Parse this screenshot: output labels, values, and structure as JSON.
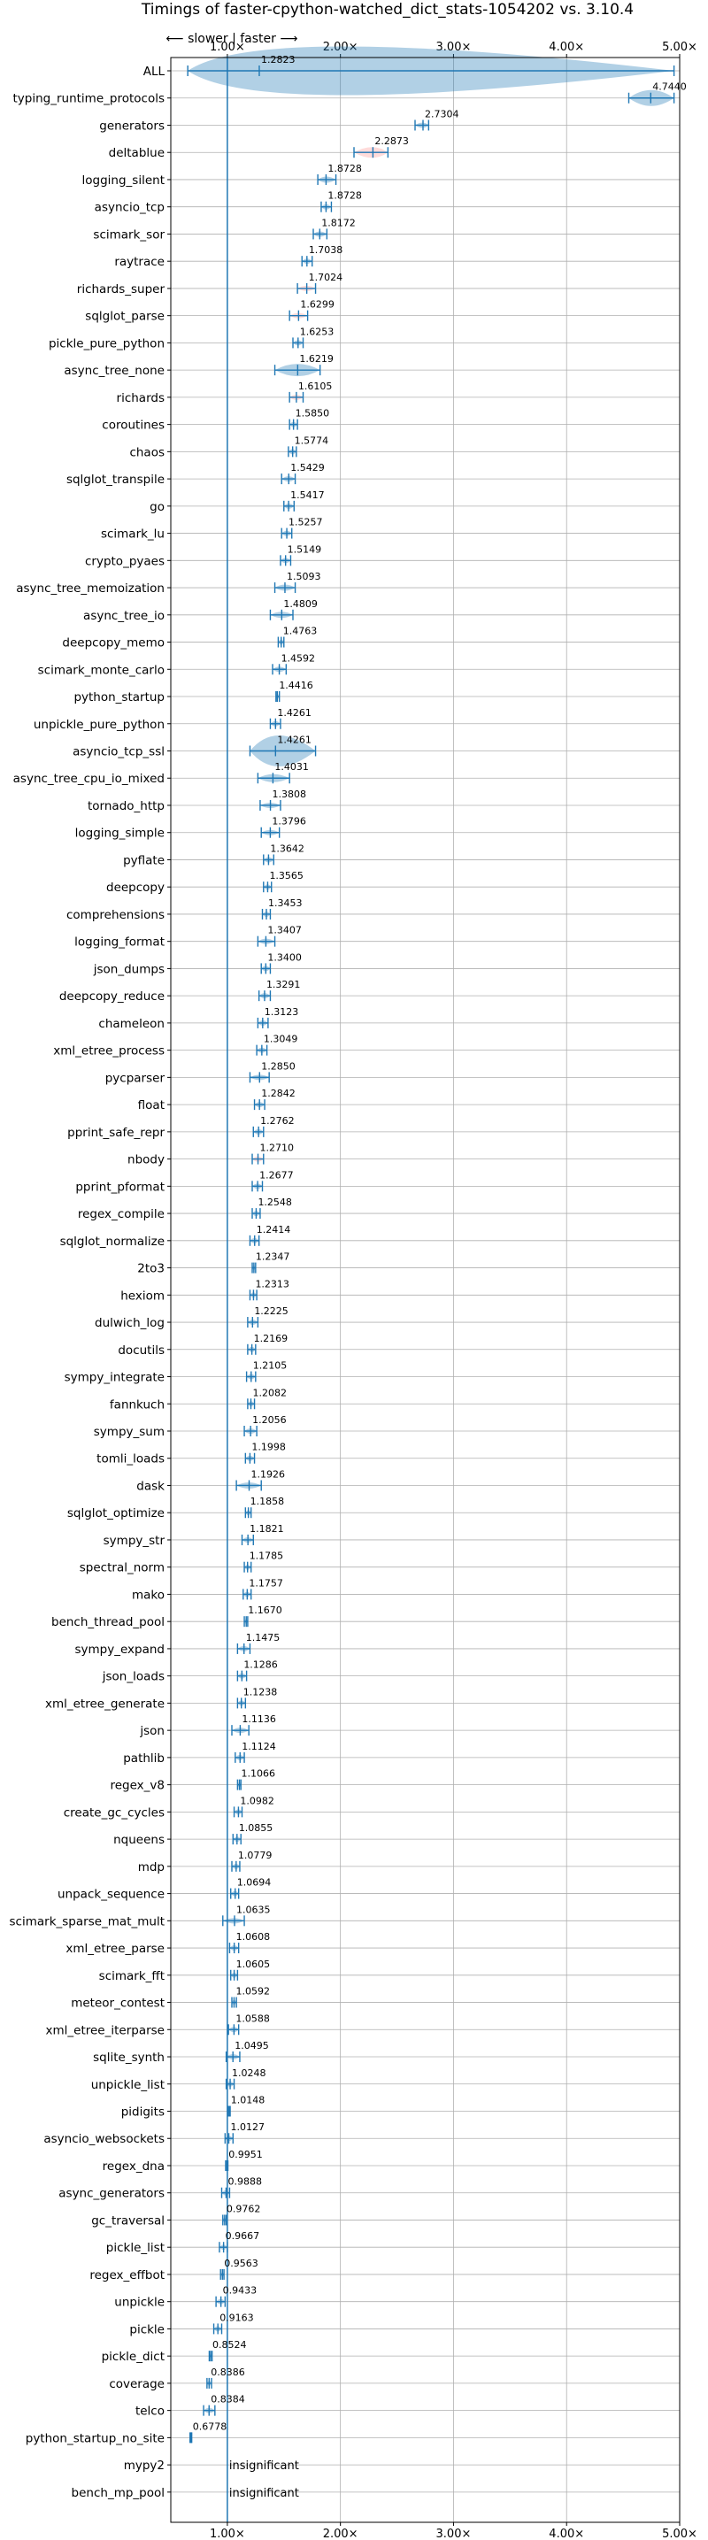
{
  "chart_data": {
    "type": "violin",
    "title": "Timings of faster-cpython-watched_dict_stats-1054202 vs. 3.10.4",
    "direction_note": "⟵ slower  |  faster ⟶",
    "xlim": [
      0.5,
      5.0
    ],
    "xticks": [
      1.0,
      2.0,
      3.0,
      4.0,
      5.0
    ],
    "xtick_labels": [
      "1.00×",
      "2.00×",
      "3.00×",
      "4.00×",
      "5.00×"
    ],
    "insignificant_label": "insignificant",
    "colors": {
      "default": "#1f77b4",
      "highlight": "#ff9896",
      "grid": "#b0b0b0"
    },
    "benchmarks": [
      {
        "name": "ALL",
        "value": 1.2823,
        "lo": 0.65,
        "hi": 4.95,
        "width": 0.55,
        "label": "1.2823"
      },
      {
        "name": "typing_runtime_protocols",
        "value": 4.744,
        "lo": 4.55,
        "hi": 4.95,
        "width": 0.18,
        "label": "4.7440"
      },
      {
        "name": "generators",
        "value": 2.7304,
        "lo": 2.66,
        "hi": 2.78,
        "width": 0.06,
        "label": "2.7304"
      },
      {
        "name": "deltablue",
        "value": 2.2873,
        "lo": 2.12,
        "hi": 2.42,
        "width": 0.12,
        "label": "2.2873",
        "highlight": true
      },
      {
        "name": "logging_silent",
        "value": 1.8728,
        "lo": 1.8,
        "hi": 1.96,
        "width": 0.07,
        "label": "1.8728"
      },
      {
        "name": "asyncio_tcp",
        "value": 1.8728,
        "lo": 1.83,
        "hi": 1.92,
        "width": 0.04,
        "label": "1.8728"
      },
      {
        "name": "scimark_sor",
        "value": 1.8172,
        "lo": 1.76,
        "hi": 1.88,
        "width": 0.05,
        "label": "1.8172"
      },
      {
        "name": "raytrace",
        "value": 1.7038,
        "lo": 1.66,
        "hi": 1.75,
        "width": 0.04,
        "label": "1.7038"
      },
      {
        "name": "richards_super",
        "value": 1.7024,
        "lo": 1.62,
        "hi": 1.78,
        "width": 0.05,
        "label": "1.7024",
        "highlight": true
      },
      {
        "name": "sqlglot_parse",
        "value": 1.6299,
        "lo": 1.55,
        "hi": 1.71,
        "width": 0.05,
        "label": "1.6299",
        "highlight": true
      },
      {
        "name": "pickle_pure_python",
        "value": 1.6253,
        "lo": 1.58,
        "hi": 1.67,
        "width": 0.04,
        "label": "1.6253"
      },
      {
        "name": "async_tree_none",
        "value": 1.6219,
        "lo": 1.42,
        "hi": 1.82,
        "width": 0.14,
        "label": "1.6219"
      },
      {
        "name": "richards",
        "value": 1.6105,
        "lo": 1.55,
        "hi": 1.67,
        "width": 0.04,
        "label": "1.6105",
        "highlight": true
      },
      {
        "name": "coroutines",
        "value": 1.585,
        "lo": 1.55,
        "hi": 1.62,
        "width": 0.04,
        "label": "1.5850"
      },
      {
        "name": "chaos",
        "value": 1.5774,
        "lo": 1.54,
        "hi": 1.61,
        "width": 0.04,
        "label": "1.5774"
      },
      {
        "name": "sqlglot_transpile",
        "value": 1.5429,
        "lo": 1.48,
        "hi": 1.6,
        "width": 0.05,
        "label": "1.5429"
      },
      {
        "name": "go",
        "value": 1.5417,
        "lo": 1.5,
        "hi": 1.59,
        "width": 0.04,
        "label": "1.5417"
      },
      {
        "name": "scimark_lu",
        "value": 1.5257,
        "lo": 1.48,
        "hi": 1.57,
        "width": 0.04,
        "label": "1.5257"
      },
      {
        "name": "crypto_pyaes",
        "value": 1.5149,
        "lo": 1.47,
        "hi": 1.56,
        "width": 0.04,
        "label": "1.5149"
      },
      {
        "name": "async_tree_memoization",
        "value": 1.5093,
        "lo": 1.42,
        "hi": 1.6,
        "width": 0.07,
        "label": "1.5093"
      },
      {
        "name": "async_tree_io",
        "value": 1.4809,
        "lo": 1.38,
        "hi": 1.58,
        "width": 0.07,
        "label": "1.4809"
      },
      {
        "name": "deepcopy_memo",
        "value": 1.4763,
        "lo": 1.45,
        "hi": 1.5,
        "width": 0.03,
        "label": "1.4763"
      },
      {
        "name": "scimark_monte_carlo",
        "value": 1.4592,
        "lo": 1.4,
        "hi": 1.52,
        "width": 0.05,
        "label": "1.4592"
      },
      {
        "name": "python_startup",
        "value": 1.4416,
        "lo": 1.43,
        "hi": 1.46,
        "width": 0.02,
        "label": "1.4416"
      },
      {
        "name": "unpickle_pure_python",
        "value": 1.4261,
        "lo": 1.38,
        "hi": 1.47,
        "width": 0.04,
        "label": "1.4261"
      },
      {
        "name": "asyncio_tcp_ssl",
        "value": 1.4261,
        "lo": 1.2,
        "hi": 1.78,
        "width": 0.35,
        "label": "1.4261"
      },
      {
        "name": "async_tree_cpu_io_mixed",
        "value": 1.4031,
        "lo": 1.27,
        "hi": 1.55,
        "width": 0.09,
        "label": "1.4031"
      },
      {
        "name": "tornado_http",
        "value": 1.3808,
        "lo": 1.29,
        "hi": 1.47,
        "width": 0.06,
        "label": "1.3808"
      },
      {
        "name": "logging_simple",
        "value": 1.3796,
        "lo": 1.3,
        "hi": 1.46,
        "width": 0.05,
        "label": "1.3796"
      },
      {
        "name": "pyflate",
        "value": 1.3642,
        "lo": 1.32,
        "hi": 1.41,
        "width": 0.04,
        "label": "1.3642"
      },
      {
        "name": "deepcopy",
        "value": 1.3565,
        "lo": 1.32,
        "hi": 1.39,
        "width": 0.04,
        "label": "1.3565"
      },
      {
        "name": "comprehensions",
        "value": 1.3453,
        "lo": 1.31,
        "hi": 1.38,
        "width": 0.04,
        "label": "1.3453"
      },
      {
        "name": "logging_format",
        "value": 1.3407,
        "lo": 1.27,
        "hi": 1.42,
        "width": 0.05,
        "label": "1.3407"
      },
      {
        "name": "json_dumps",
        "value": 1.34,
        "lo": 1.3,
        "hi": 1.38,
        "width": 0.04,
        "label": "1.3400"
      },
      {
        "name": "deepcopy_reduce",
        "value": 1.3291,
        "lo": 1.28,
        "hi": 1.38,
        "width": 0.04,
        "label": "1.3291"
      },
      {
        "name": "chameleon",
        "value": 1.3123,
        "lo": 1.27,
        "hi": 1.36,
        "width": 0.04,
        "label": "1.3123"
      },
      {
        "name": "xml_etree_process",
        "value": 1.3049,
        "lo": 1.26,
        "hi": 1.35,
        "width": 0.04,
        "label": "1.3049"
      },
      {
        "name": "pycparser",
        "value": 1.285,
        "lo": 1.2,
        "hi": 1.37,
        "width": 0.05,
        "label": "1.2850"
      },
      {
        "name": "float",
        "value": 1.2842,
        "lo": 1.24,
        "hi": 1.33,
        "width": 0.04,
        "label": "1.2842"
      },
      {
        "name": "pprint_safe_repr",
        "value": 1.2762,
        "lo": 1.23,
        "hi": 1.32,
        "width": 0.04,
        "label": "1.2762"
      },
      {
        "name": "nbody",
        "value": 1.271,
        "lo": 1.22,
        "hi": 1.32,
        "width": 0.04,
        "label": "1.2710",
        "highlight": true
      },
      {
        "name": "pprint_pformat",
        "value": 1.2677,
        "lo": 1.22,
        "hi": 1.31,
        "width": 0.04,
        "label": "1.2677"
      },
      {
        "name": "regex_compile",
        "value": 1.2548,
        "lo": 1.22,
        "hi": 1.29,
        "width": 0.03,
        "label": "1.2548"
      },
      {
        "name": "sqlglot_normalize",
        "value": 1.2414,
        "lo": 1.2,
        "hi": 1.28,
        "width": 0.04,
        "label": "1.2414"
      },
      {
        "name": "2to3",
        "value": 1.2347,
        "lo": 1.22,
        "hi": 1.25,
        "width": 0.02,
        "label": "1.2347"
      },
      {
        "name": "hexiom",
        "value": 1.2313,
        "lo": 1.2,
        "hi": 1.26,
        "width": 0.03,
        "label": "1.2313"
      },
      {
        "name": "dulwich_log",
        "value": 1.2225,
        "lo": 1.18,
        "hi": 1.27,
        "width": 0.04,
        "label": "1.2225"
      },
      {
        "name": "docutils",
        "value": 1.2169,
        "lo": 1.18,
        "hi": 1.25,
        "width": 0.03,
        "label": "1.2169"
      },
      {
        "name": "sympy_integrate",
        "value": 1.2105,
        "lo": 1.17,
        "hi": 1.25,
        "width": 0.03,
        "label": "1.2105"
      },
      {
        "name": "fannkuch",
        "value": 1.2082,
        "lo": 1.18,
        "hi": 1.24,
        "width": 0.03,
        "label": "1.2082"
      },
      {
        "name": "sympy_sum",
        "value": 1.2056,
        "lo": 1.15,
        "hi": 1.26,
        "width": 0.04,
        "label": "1.2056"
      },
      {
        "name": "tomli_loads",
        "value": 1.1998,
        "lo": 1.16,
        "hi": 1.24,
        "width": 0.03,
        "label": "1.1998"
      },
      {
        "name": "dask",
        "value": 1.1926,
        "lo": 1.08,
        "hi": 1.3,
        "width": 0.07,
        "label": "1.1926"
      },
      {
        "name": "sqlglot_optimize",
        "value": 1.1858,
        "lo": 1.16,
        "hi": 1.21,
        "width": 0.03,
        "label": "1.1858"
      },
      {
        "name": "sympy_str",
        "value": 1.1821,
        "lo": 1.13,
        "hi": 1.23,
        "width": 0.04,
        "label": "1.1821"
      },
      {
        "name": "spectral_norm",
        "value": 1.1785,
        "lo": 1.15,
        "hi": 1.21,
        "width": 0.03,
        "label": "1.1785"
      },
      {
        "name": "mako",
        "value": 1.1757,
        "lo": 1.14,
        "hi": 1.21,
        "width": 0.03,
        "label": "1.1757"
      },
      {
        "name": "bench_thread_pool",
        "value": 1.167,
        "lo": 1.15,
        "hi": 1.18,
        "width": 0.02,
        "label": "1.1670"
      },
      {
        "name": "sympy_expand",
        "value": 1.1475,
        "lo": 1.09,
        "hi": 1.2,
        "width": 0.04,
        "label": "1.1475"
      },
      {
        "name": "json_loads",
        "value": 1.1286,
        "lo": 1.09,
        "hi": 1.17,
        "width": 0.03,
        "label": "1.1286"
      },
      {
        "name": "xml_etree_generate",
        "value": 1.1238,
        "lo": 1.09,
        "hi": 1.16,
        "width": 0.03,
        "label": "1.1238"
      },
      {
        "name": "json",
        "value": 1.1136,
        "lo": 1.04,
        "hi": 1.19,
        "width": 0.05,
        "label": "1.1136"
      },
      {
        "name": "pathlib",
        "value": 1.1124,
        "lo": 1.07,
        "hi": 1.15,
        "width": 0.03,
        "label": "1.1124"
      },
      {
        "name": "regex_v8",
        "value": 1.1066,
        "lo": 1.09,
        "hi": 1.12,
        "width": 0.02,
        "label": "1.1066"
      },
      {
        "name": "create_gc_cycles",
        "value": 1.0982,
        "lo": 1.06,
        "hi": 1.13,
        "width": 0.03,
        "label": "1.0982"
      },
      {
        "name": "nqueens",
        "value": 1.0855,
        "lo": 1.05,
        "hi": 1.12,
        "width": 0.03,
        "label": "1.0855"
      },
      {
        "name": "mdp",
        "value": 1.0779,
        "lo": 1.04,
        "hi": 1.11,
        "width": 0.03,
        "label": "1.0779"
      },
      {
        "name": "unpack_sequence",
        "value": 1.0694,
        "lo": 1.03,
        "hi": 1.1,
        "width": 0.03,
        "label": "1.0694"
      },
      {
        "name": "scimark_sparse_mat_mult",
        "value": 1.0635,
        "lo": 0.96,
        "hi": 1.15,
        "width": 0.05,
        "label": "1.0635"
      },
      {
        "name": "xml_etree_parse",
        "value": 1.0608,
        "lo": 1.02,
        "hi": 1.1,
        "width": 0.03,
        "label": "1.0608"
      },
      {
        "name": "scimark_fft",
        "value": 1.0605,
        "lo": 1.03,
        "hi": 1.09,
        "width": 0.03,
        "label": "1.0605"
      },
      {
        "name": "meteor_contest",
        "value": 1.0592,
        "lo": 1.04,
        "hi": 1.08,
        "width": 0.02,
        "label": "1.0592"
      },
      {
        "name": "xml_etree_iterparse",
        "value": 1.0588,
        "lo": 1.01,
        "hi": 1.1,
        "width": 0.03,
        "label": "1.0588"
      },
      {
        "name": "sqlite_synth",
        "value": 1.0495,
        "lo": 0.99,
        "hi": 1.11,
        "width": 0.04,
        "label": "1.0495"
      },
      {
        "name": "unpickle_list",
        "value": 1.0248,
        "lo": 0.99,
        "hi": 1.06,
        "width": 0.03,
        "label": "1.0248"
      },
      {
        "name": "pidigits",
        "value": 1.0148,
        "lo": 1.005,
        "hi": 1.025,
        "width": 0.02,
        "label": "1.0148"
      },
      {
        "name": "asyncio_websockets",
        "value": 1.0127,
        "lo": 0.98,
        "hi": 1.05,
        "width": 0.03,
        "label": "1.0127"
      },
      {
        "name": "regex_dna",
        "value": 0.9951,
        "lo": 0.985,
        "hi": 1.005,
        "width": 0.02,
        "label": "0.9951"
      },
      {
        "name": "async_generators",
        "value": 0.9888,
        "lo": 0.95,
        "hi": 1.02,
        "width": 0.03,
        "label": "0.9888"
      },
      {
        "name": "gc_traversal",
        "value": 0.9762,
        "lo": 0.96,
        "hi": 0.99,
        "width": 0.02,
        "label": "0.9762"
      },
      {
        "name": "pickle_list",
        "value": 0.9667,
        "lo": 0.93,
        "hi": 1.0,
        "width": 0.03,
        "label": "0.9667"
      },
      {
        "name": "regex_effbot",
        "value": 0.9563,
        "lo": 0.94,
        "hi": 0.97,
        "width": 0.02,
        "label": "0.9563"
      },
      {
        "name": "unpickle",
        "value": 0.9433,
        "lo": 0.9,
        "hi": 0.98,
        "width": 0.03,
        "label": "0.9433"
      },
      {
        "name": "pickle",
        "value": 0.9163,
        "lo": 0.88,
        "hi": 0.95,
        "width": 0.03,
        "label": "0.9163"
      },
      {
        "name": "pickle_dict",
        "value": 0.8524,
        "lo": 0.84,
        "hi": 0.865,
        "width": 0.02,
        "label": "0.8524"
      },
      {
        "name": "coverage",
        "value": 0.8386,
        "lo": 0.82,
        "hi": 0.86,
        "width": 0.02,
        "label": "0.8386"
      },
      {
        "name": "telco",
        "value": 0.8384,
        "lo": 0.79,
        "hi": 0.89,
        "width": 0.04,
        "label": "0.8384"
      },
      {
        "name": "python_startup_no_site",
        "value": 0.6778,
        "lo": 0.67,
        "hi": 0.685,
        "width": 0.015,
        "label": "0.6778"
      },
      {
        "name": "mypy2",
        "insignificant": true
      },
      {
        "name": "bench_mp_pool",
        "insignificant": true
      }
    ]
  }
}
